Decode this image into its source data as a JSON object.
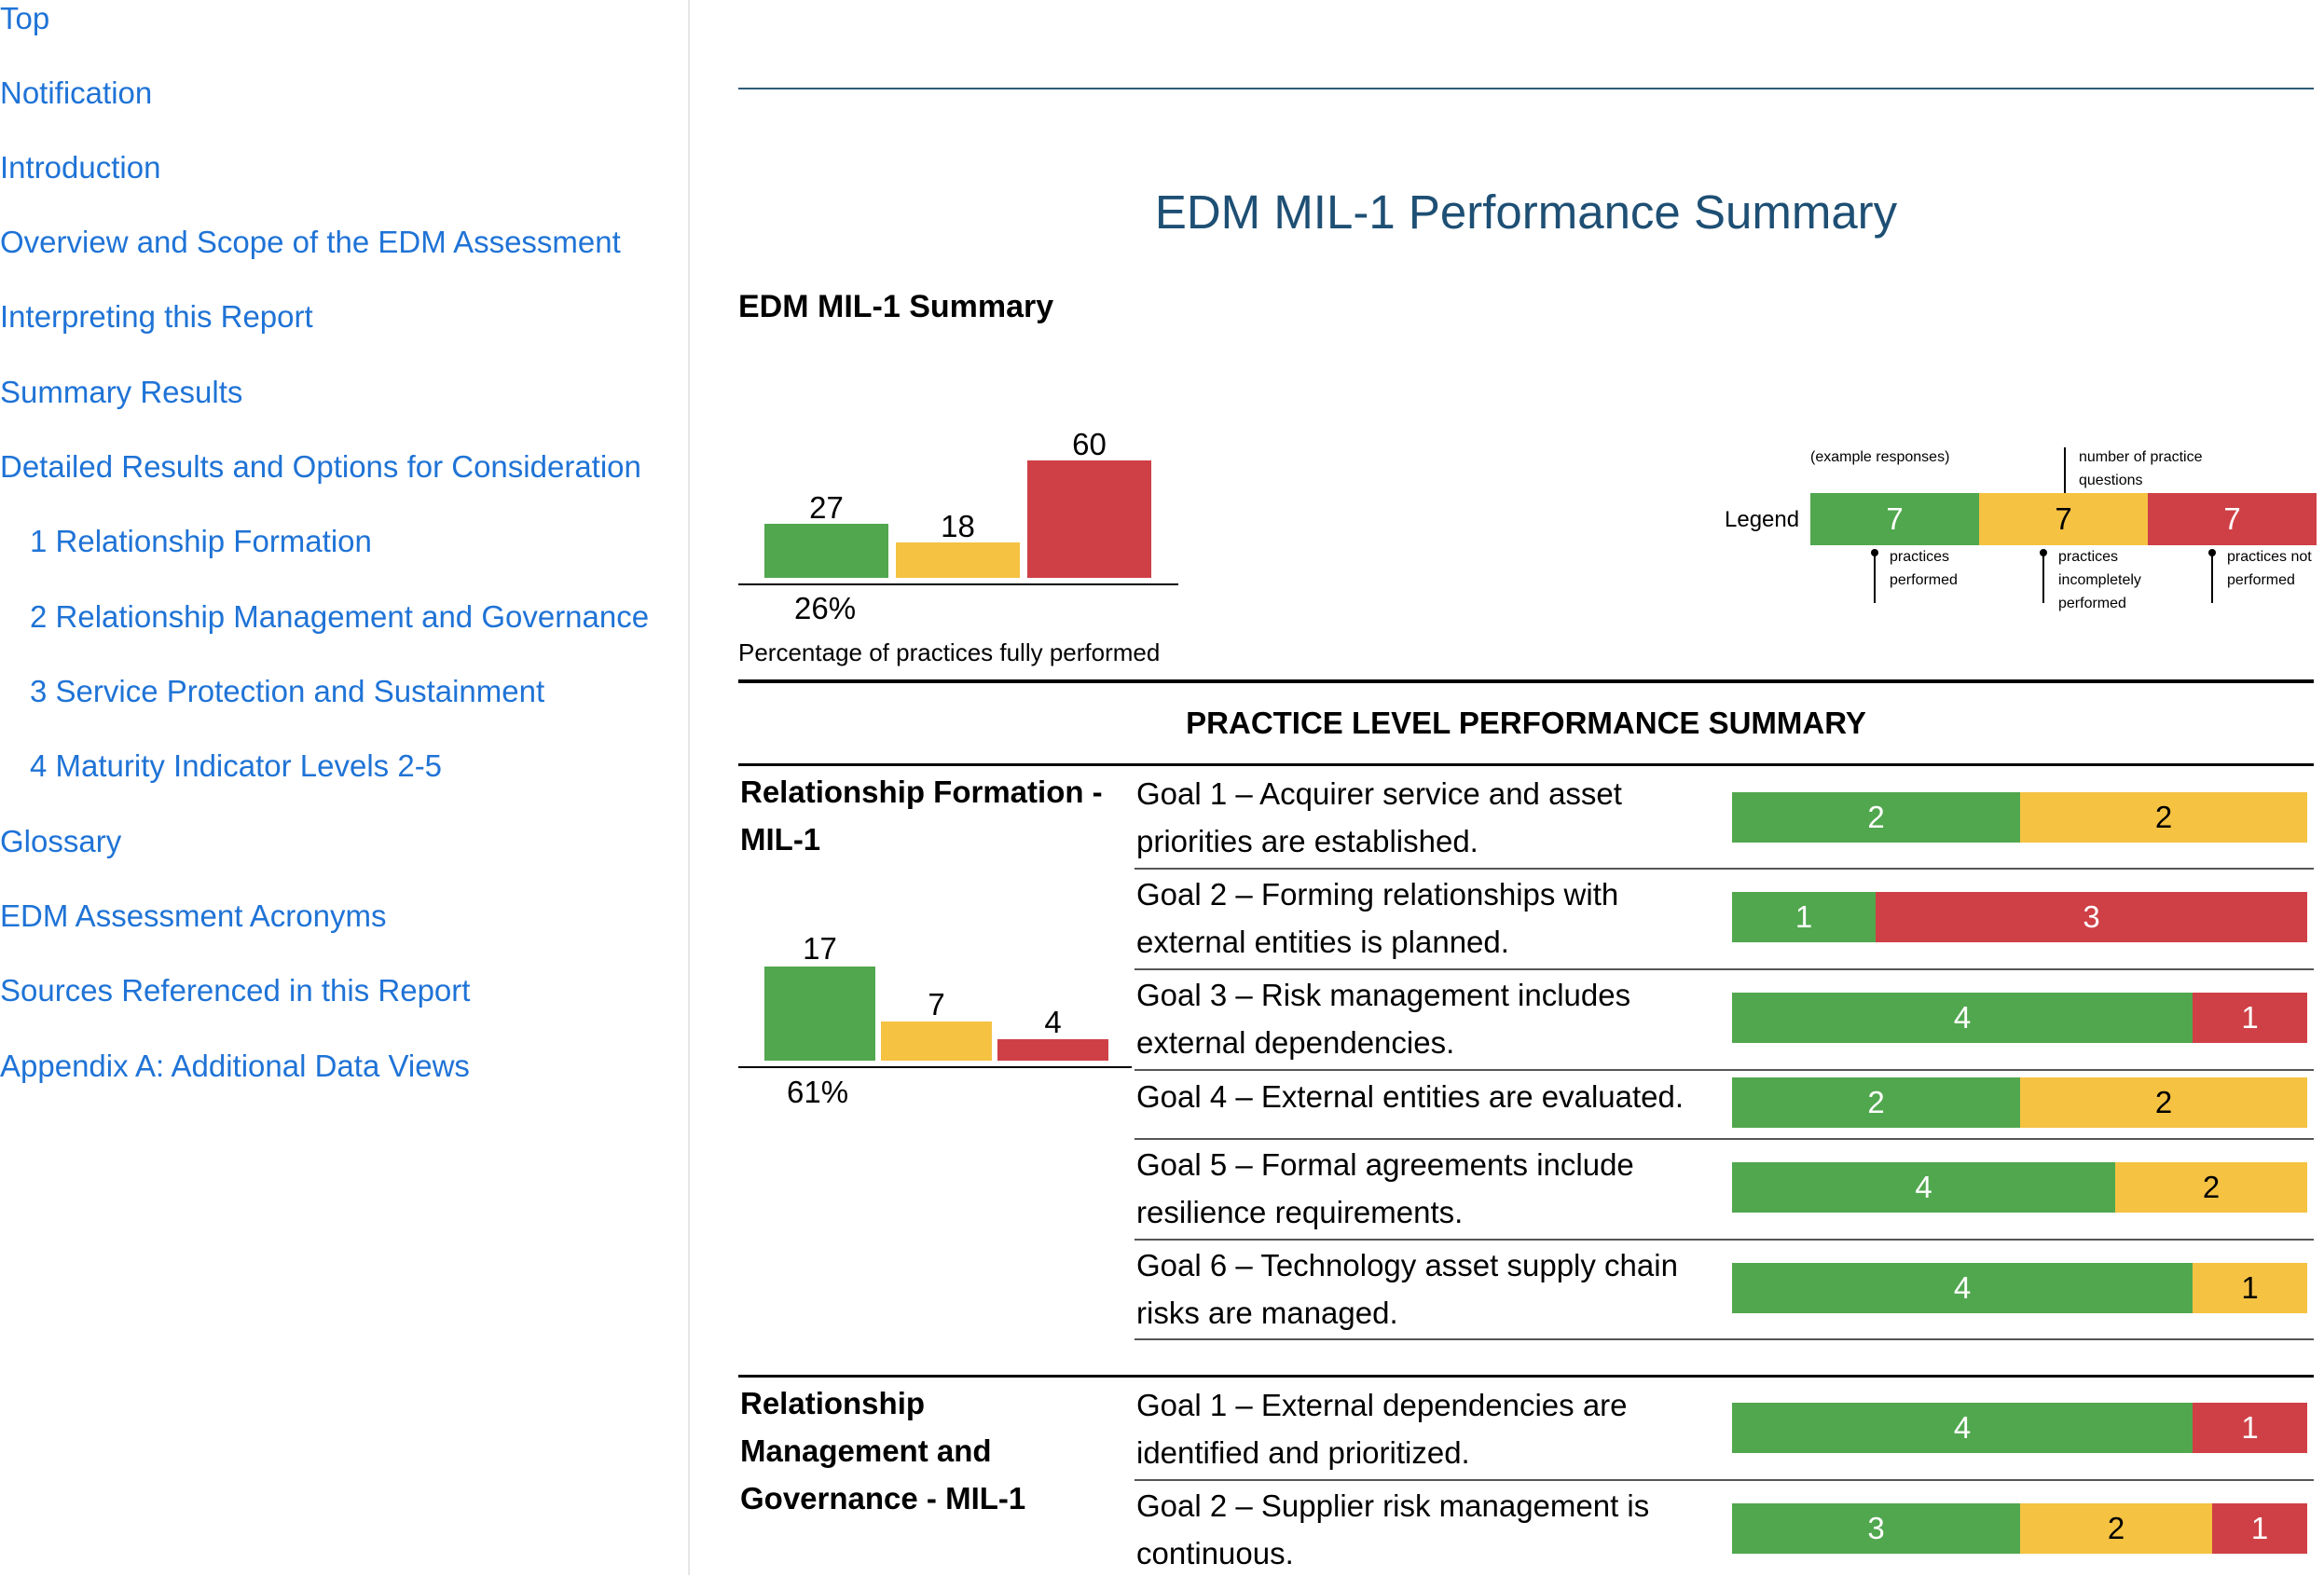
{
  "sidebar": {
    "items": [
      {
        "label": "Top"
      },
      {
        "label": "Notification"
      },
      {
        "label": "Introduction"
      },
      {
        "label": "Overview and Scope of the EDM Assessment"
      },
      {
        "label": "Interpreting this Report"
      },
      {
        "label": "Summary Results"
      },
      {
        "label": "Detailed Results and Options for Consideration"
      },
      {
        "label": "1 Relationship Formation"
      },
      {
        "label": "2 Relationship Management and Governance"
      },
      {
        "label": "3 Service Protection and Sustainment"
      },
      {
        "label": "4 Maturity Indicator Levels 2-5"
      },
      {
        "label": "Glossary"
      },
      {
        "label": "EDM Assessment Acronyms"
      },
      {
        "label": "Sources Referenced in this Report"
      },
      {
        "label": "Appendix A: Additional Data Views"
      }
    ]
  },
  "main": {
    "title": "EDM MIL-1 Performance Summary",
    "summary_heading": "EDM MIL-1 Summary",
    "summary_chart": {
      "values": {
        "performed": 27,
        "incomplete": 18,
        "not_performed": 60
      },
      "percent": "26%",
      "caption": "Percentage of practices fully performed"
    },
    "legend": {
      "label": "Legend",
      "example": "(example responses)",
      "number_note": "number of practice questions",
      "values": [
        7,
        7,
        7
      ],
      "notes": [
        "practices performed",
        "practices incompletely performed",
        "practices not performed"
      ]
    },
    "practice_heading": "PRACTICE LEVEL PERFORMANCE SUMMARY",
    "sections": [
      {
        "title": "Relationship Formation - MIL-1",
        "chart": {
          "performed": 17,
          "incomplete": 7,
          "not_performed": 4,
          "percent": "61%"
        },
        "goals": [
          {
            "text": "Goal 1 – Acquirer service and asset priorities are established.",
            "performed": 2,
            "incomplete": 2,
            "not_performed": 0
          },
          {
            "text": "Goal 2 – Forming relationships with external entities is planned.",
            "performed": 1,
            "incomplete": 0,
            "not_performed": 3
          },
          {
            "text": "Goal 3 – Risk management includes external dependencies.",
            "performed": 4,
            "incomplete": 0,
            "not_performed": 1
          },
          {
            "text": "Goal 4 – External entities are evaluated.",
            "performed": 2,
            "incomplete": 2,
            "not_performed": 0
          },
          {
            "text": "Goal 5 – Formal agreements include resilience requirements.",
            "performed": 4,
            "incomplete": 2,
            "not_performed": 0
          },
          {
            "text": "Goal 6 – Technology asset supply chain risks are managed.",
            "performed": 4,
            "incomplete": 1,
            "not_performed": 0
          }
        ]
      },
      {
        "title": "Relationship Management and Governance - MIL-1",
        "goals": [
          {
            "text": "Goal 1 – External dependencies are identified and prioritized.",
            "performed": 4,
            "incomplete": 0,
            "not_performed": 1
          },
          {
            "text": "Goal 2 – Supplier risk management is continuous.",
            "performed": 3,
            "incomplete": 2,
            "not_performed": 1
          }
        ]
      }
    ]
  },
  "colors": {
    "performed": "#51a74e",
    "incomplete": "#f5c242",
    "not_performed": "#cf4046",
    "link": "#1f73d6",
    "title": "#1e4f74"
  }
}
